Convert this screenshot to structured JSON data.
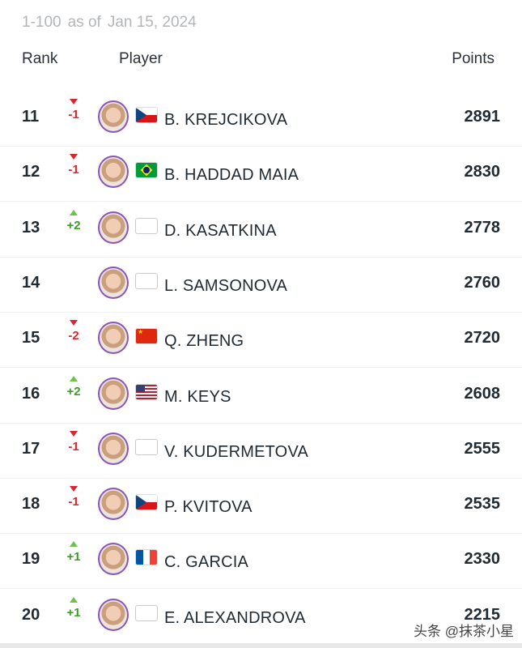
{
  "header": {
    "range": "1-100",
    "as_of": "as of",
    "date": "Jan 15, 2024"
  },
  "columns": {
    "rank": "Rank",
    "player": "Player",
    "points": "Points"
  },
  "rows": [
    {
      "rank": "11",
      "move": "-1",
      "dir": "down",
      "flag": "CZ",
      "name": "B. KREJCIKOVA",
      "points": "2891"
    },
    {
      "rank": "12",
      "move": "-1",
      "dir": "down",
      "flag": "BR",
      "name": "B. HADDAD MAIA",
      "points": "2830"
    },
    {
      "rank": "13",
      "move": "+2",
      "dir": "up",
      "flag": "",
      "name": "D. KASATKINA",
      "points": "2778"
    },
    {
      "rank": "14",
      "move": "",
      "dir": "",
      "flag": "",
      "name": "L. SAMSONOVA",
      "points": "2760"
    },
    {
      "rank": "15",
      "move": "-2",
      "dir": "down",
      "flag": "CN",
      "name": "Q. ZHENG",
      "points": "2720"
    },
    {
      "rank": "16",
      "move": "+2",
      "dir": "up",
      "flag": "US",
      "name": "M. KEYS",
      "points": "2608"
    },
    {
      "rank": "17",
      "move": "-1",
      "dir": "down",
      "flag": "",
      "name": "V. KUDERMETOVA",
      "points": "2555"
    },
    {
      "rank": "18",
      "move": "-1",
      "dir": "down",
      "flag": "CZ",
      "name": "P. KVITOVA",
      "points": "2535"
    },
    {
      "rank": "19",
      "move": "+1",
      "dir": "up",
      "flag": "FR",
      "name": "C. GARCIA",
      "points": "2330"
    },
    {
      "rank": "20",
      "move": "+1",
      "dir": "up",
      "flag": "",
      "name": "E. ALEXANDROVA",
      "points": "2215"
    }
  ],
  "watermark": "头条 @抹茶小星",
  "colors": {
    "up": "#6cc24a",
    "down": "#d7272f",
    "avatar_ring": "#8a55b8"
  }
}
